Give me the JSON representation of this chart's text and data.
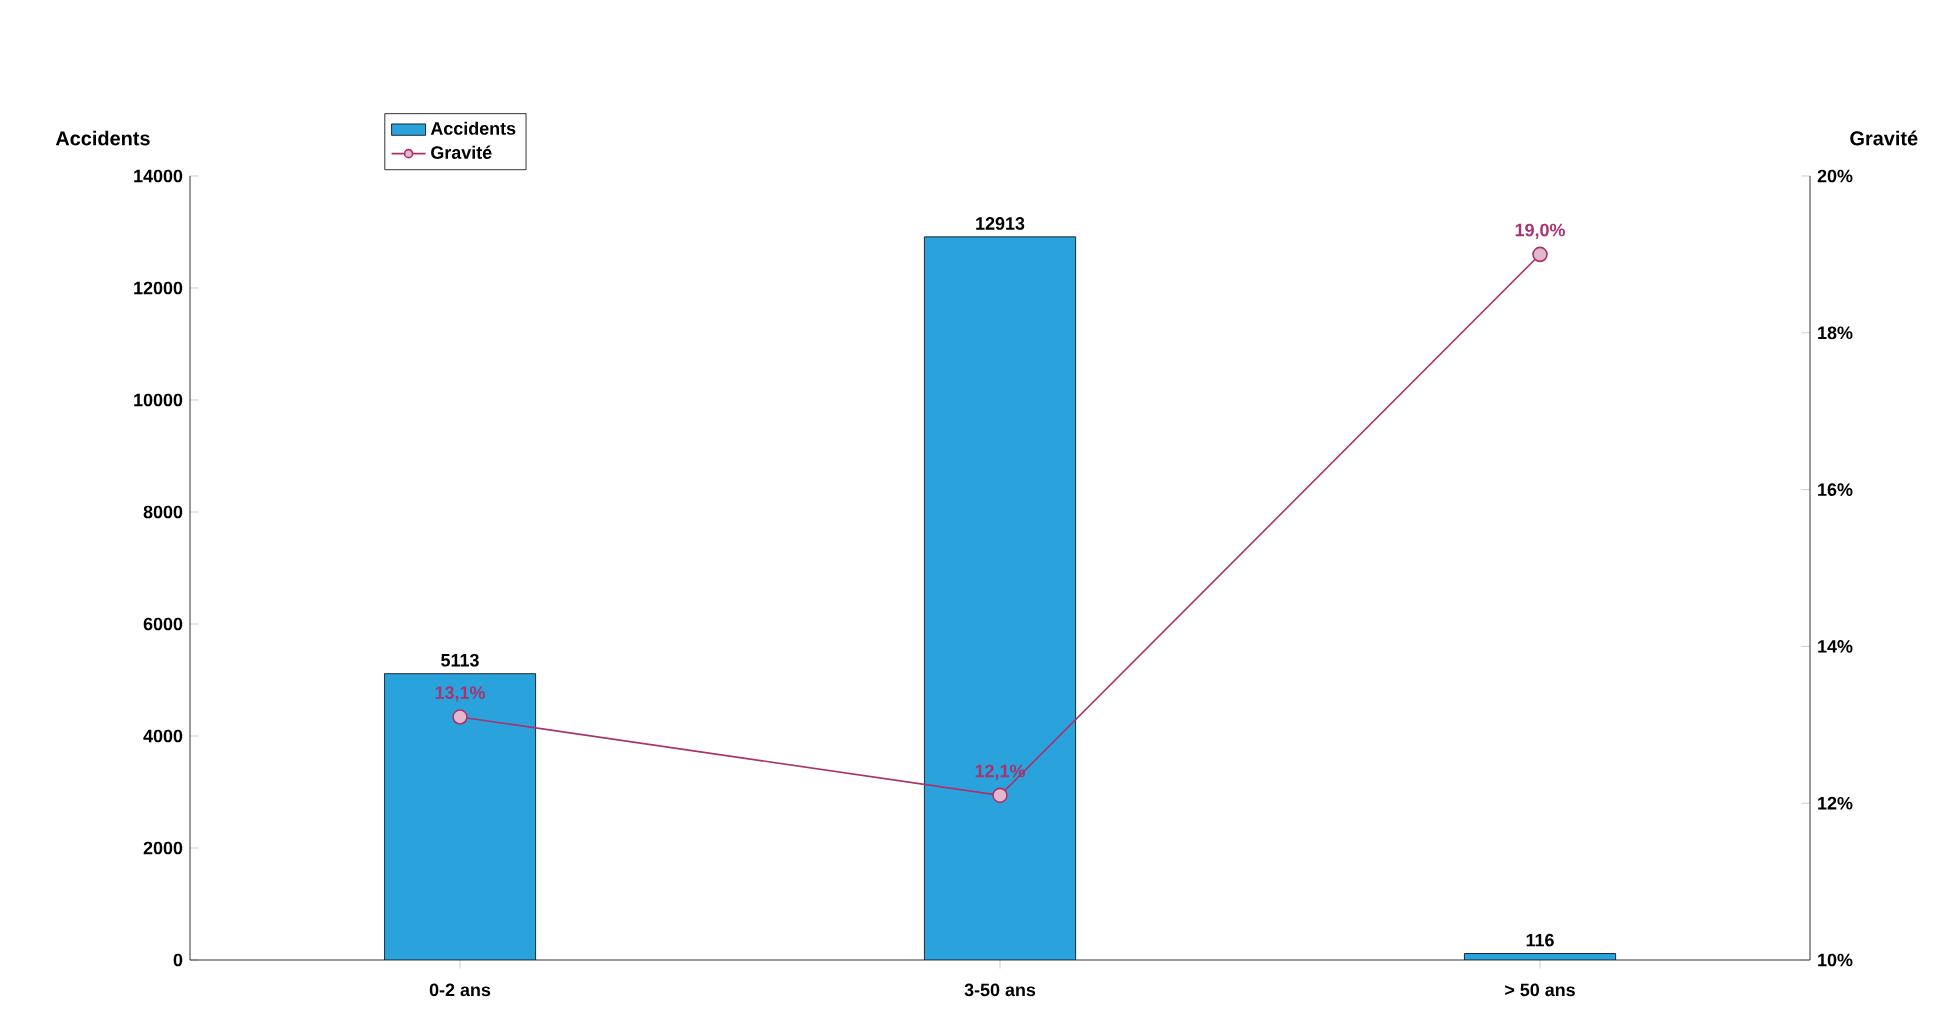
{
  "chart_data": {
    "type": "bar",
    "ylabel": "Accidents",
    "y2label": "Gravité",
    "categories": [
      "0-2 ans",
      "3-50 ans",
      "> 50 ans"
    ],
    "series": [
      {
        "name": "Accidents",
        "color": "#2aa3dc",
        "values": [
          5113,
          12913,
          116
        ],
        "value_labels": [
          "5113",
          "12913",
          "116"
        ]
      },
      {
        "name": "Gravité",
        "type": "line",
        "axis": "y2",
        "color": "#a8336e",
        "marker": "circle",
        "values": [
          13.1,
          12.1,
          19.0
        ],
        "value_labels": [
          "13,1%",
          "12,1%",
          "19,0%"
        ]
      }
    ],
    "ylim": [
      0,
      14000
    ],
    "yticks": [
      0,
      2000,
      4000,
      6000,
      8000,
      10000,
      12000,
      14000
    ],
    "y2lim": [
      10,
      20
    ],
    "y2ticks": [
      {
        "value": 10,
        "label": "10%"
      },
      {
        "value": 12,
        "label": "12%"
      },
      {
        "value": 14,
        "label": "14%"
      },
      {
        "value": 16,
        "label": "16%"
      },
      {
        "value": 18,
        "label": "18%"
      },
      {
        "value": 20,
        "label": "20%"
      }
    ],
    "legend": "top left",
    "grid": false
  }
}
